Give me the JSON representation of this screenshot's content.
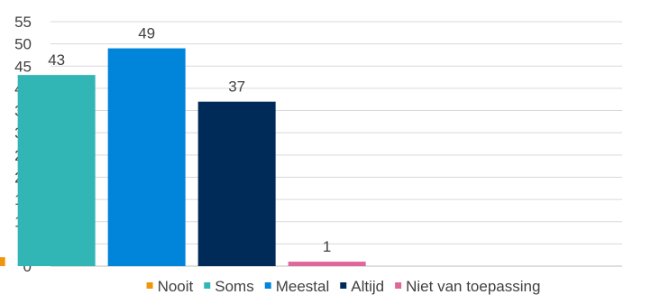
{
  "chart_data": {
    "type": "bar",
    "title": "",
    "xlabel": "",
    "ylabel": "",
    "ylim": [
      0,
      55
    ],
    "yticks": [
      0,
      5,
      10,
      15,
      20,
      25,
      30,
      35,
      40,
      45,
      50,
      55
    ],
    "grid": true,
    "legend_position": "bottom",
    "series": [
      {
        "name": "Nooit",
        "value": 2,
        "label": "2",
        "color": "#F0960A"
      },
      {
        "name": "Soms",
        "value": 43,
        "label": "43",
        "color": "#32B5B5"
      },
      {
        "name": "Meestal",
        "value": 49,
        "label": "49",
        "color": "#0085DB"
      },
      {
        "name": "Altijd",
        "value": 37,
        "label": "37",
        "color": "#002B59"
      },
      {
        "name": "Niet van toepassing",
        "value": 1,
        "label": "1",
        "color": "#E0679A"
      }
    ]
  },
  "style": {
    "grid_color": "#d9d9d9",
    "axis_color": "#bfbfbf",
    "text_color": "#404040"
  }
}
